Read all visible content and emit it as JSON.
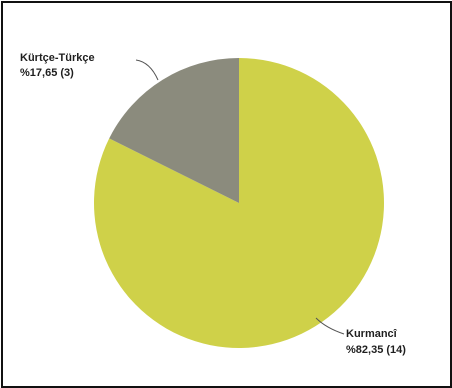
{
  "chart_data": {
    "type": "pie",
    "title": "",
    "slices": [
      {
        "name": "Kurmancî",
        "percent_label": "%82,35 (14)",
        "value": 14,
        "percent": 82.35,
        "color": "#cfd149"
      },
      {
        "name": "Kürtçe-Türkçe",
        "percent_label": "%17,65 (3)",
        "value": 3,
        "percent": 17.65,
        "color": "#8b8b7d"
      }
    ],
    "start": "12 o'clock",
    "direction": "clockwise",
    "legend": "none"
  }
}
